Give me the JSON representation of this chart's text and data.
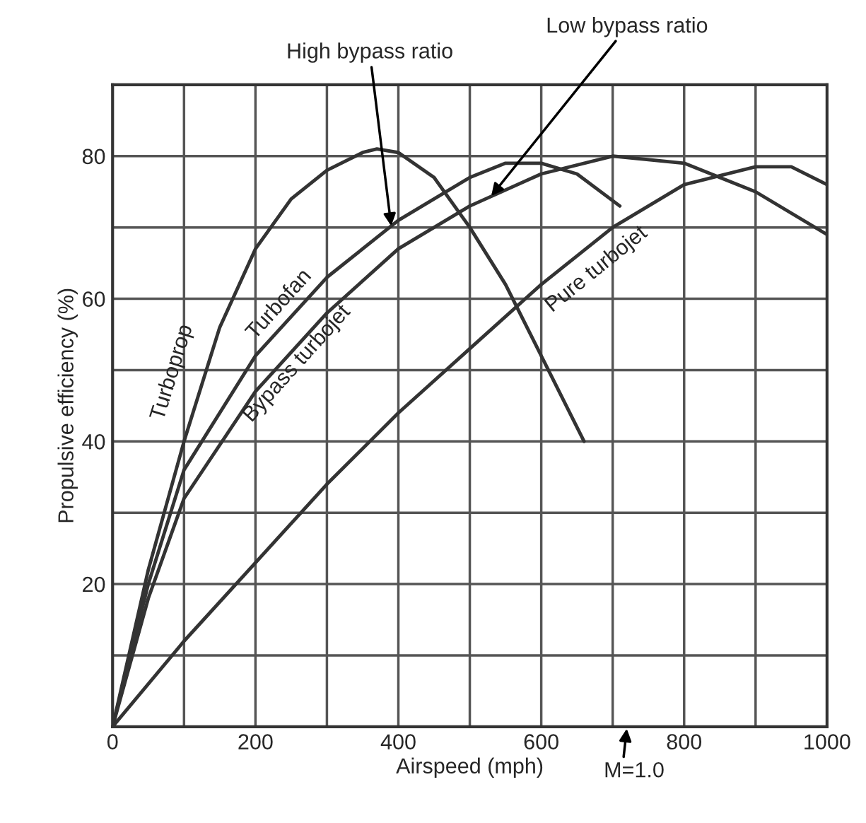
{
  "chart_data": {
    "type": "line",
    "xlabel": "Airspeed (mph)",
    "ylabel": "Propulsive efficiency (%)",
    "xlim": [
      0,
      1000
    ],
    "ylim": [
      0,
      90
    ],
    "xticks": [
      0,
      {
        "value": 100,
        "label": null
      },
      200,
      {
        "value": 300,
        "label": null
      },
      400,
      {
        "value": 500,
        "label": null
      },
      600,
      {
        "value": 700,
        "label": null
      },
      800,
      {
        "value": 900,
        "label": null
      },
      1000
    ],
    "yticks": [
      {
        "value": 0,
        "label": null
      },
      {
        "value": 10,
        "label": null
      },
      20,
      {
        "value": 30,
        "label": null
      },
      40,
      {
        "value": 50,
        "label": null
      },
      60,
      {
        "value": 70,
        "label": null
      },
      80,
      {
        "value": 90,
        "label": null
      }
    ],
    "grid": true,
    "legend": false,
    "series": [
      {
        "name": "Turboprop",
        "color": "#333333",
        "x": [
          0,
          50,
          100,
          150,
          200,
          250,
          300,
          350,
          370,
          400,
          450,
          500,
          550,
          600,
          660
        ],
        "values": [
          0,
          22,
          40,
          56,
          67,
          74,
          78,
          80.5,
          81,
          80.5,
          77,
          70,
          62,
          52,
          40
        ]
      },
      {
        "name": "Turbofan",
        "color": "#333333",
        "x": [
          0,
          50,
          100,
          200,
          300,
          400,
          500,
          550,
          600,
          650,
          710
        ],
        "values": [
          0,
          20,
          36,
          52,
          63,
          71,
          77,
          79,
          79,
          77.5,
          73
        ]
      },
      {
        "name": "Bypass turbojet",
        "color": "#333333",
        "x": [
          0,
          50,
          100,
          200,
          300,
          400,
          500,
          600,
          700,
          800,
          900,
          1000
        ],
        "values": [
          0,
          18,
          32,
          47,
          58,
          67,
          73,
          77.5,
          80,
          79,
          75,
          69
        ]
      },
      {
        "name": "Pure turbojet",
        "color": "#333333",
        "x": [
          0,
          100,
          200,
          300,
          400,
          500,
          600,
          700,
          800,
          900,
          950,
          1000
        ],
        "values": [
          0,
          12,
          23,
          34,
          44,
          53,
          62,
          70,
          76,
          78.5,
          78.5,
          76
        ]
      }
    ],
    "annotations": [
      {
        "text": "High bypass ratio",
        "x": 390,
        "y": 70.2
      },
      {
        "text": "Low bypass ratio",
        "x": 530,
        "y": 74.4
      },
      "M=1.0"
    ]
  }
}
